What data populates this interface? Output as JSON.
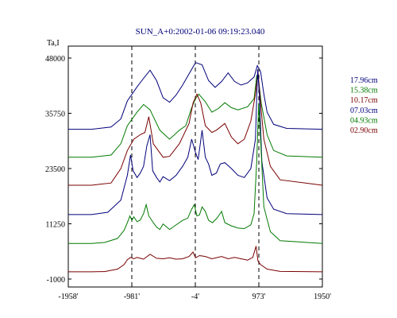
{
  "chart_data": {
    "type": "line",
    "title": "SUN_A+0:2002-01-06 09:19:23.040",
    "ylabel": "Ta,I",
    "xlabel": "",
    "xlim": [
      -1958,
      1950
    ],
    "ylim": [
      -1000,
      48000
    ],
    "x_ticks": [
      -1958,
      -981,
      -4,
      973,
      1950
    ],
    "x_tick_labels": [
      "-1958'",
      "-981'",
      "-4'",
      "973'",
      "1950'"
    ],
    "y_ticks": [
      -1000,
      11250,
      23500,
      35750,
      48000
    ],
    "y_tick_labels": [
      "-1000",
      "11250",
      "23500",
      "35750",
      "48000"
    ],
    "grid": false,
    "vertical_markers": [
      -981,
      -4,
      973
    ],
    "legend_placement": "right",
    "colors": {
      "navy": "#00007a",
      "green": "#007a00",
      "darkred": "#7a0000"
    },
    "series": [
      {
        "name": "17.96cm",
        "color": "#00007a",
        "points": [
          [
            -1958,
            32200
          ],
          [
            -1600,
            32200
          ],
          [
            -1300,
            32700
          ],
          [
            -1150,
            34500
          ],
          [
            -1050,
            38500
          ],
          [
            -900,
            41600
          ],
          [
            -800,
            43500
          ],
          [
            -700,
            45300
          ],
          [
            -600,
            43000
          ],
          [
            -500,
            39200
          ],
          [
            -400,
            38200
          ],
          [
            -300,
            39800
          ],
          [
            -200,
            42000
          ],
          [
            -100,
            44500
          ],
          [
            0,
            47000
          ],
          [
            100,
            46500
          ],
          [
            200,
            43000
          ],
          [
            300,
            41500
          ],
          [
            400,
            42800
          ],
          [
            500,
            44700
          ],
          [
            600,
            42800
          ],
          [
            700,
            42000
          ],
          [
            800,
            42500
          ],
          [
            900,
            43800
          ],
          [
            950,
            46300
          ],
          [
            1000,
            45000
          ],
          [
            1050,
            40000
          ],
          [
            1100,
            36000
          ],
          [
            1200,
            33300
          ],
          [
            1400,
            32400
          ],
          [
            1950,
            32200
          ]
        ]
      },
      {
        "name": "15.38cm",
        "color": "#007a00",
        "points": [
          [
            -1958,
            26000
          ],
          [
            -1600,
            26000
          ],
          [
            -1300,
            26500
          ],
          [
            -1150,
            29000
          ],
          [
            -1050,
            33000
          ],
          [
            -900,
            36000
          ],
          [
            -800,
            37700
          ],
          [
            -700,
            36500
          ],
          [
            -550,
            32000
          ],
          [
            -400,
            30000
          ],
          [
            -250,
            32000
          ],
          [
            -150,
            33000
          ],
          [
            -60,
            37000
          ],
          [
            0,
            39000
          ],
          [
            50,
            40000
          ],
          [
            150,
            38300
          ],
          [
            250,
            36000
          ],
          [
            350,
            36800
          ],
          [
            450,
            38100
          ],
          [
            550,
            37000
          ],
          [
            650,
            36500
          ],
          [
            800,
            37200
          ],
          [
            900,
            39000
          ],
          [
            940,
            44000
          ],
          [
            970,
            43000
          ],
          [
            1010,
            38000
          ],
          [
            1100,
            31000
          ],
          [
            1200,
            27500
          ],
          [
            1400,
            26300
          ],
          [
            1950,
            26000
          ]
        ]
      },
      {
        "name": "10.17cm",
        "color": "#7a0000",
        "points": [
          [
            -1958,
            19800
          ],
          [
            -1600,
            19800
          ],
          [
            -1300,
            20300
          ],
          [
            -1150,
            23500
          ],
          [
            -1050,
            27500
          ],
          [
            -950,
            30000
          ],
          [
            -850,
            31000
          ],
          [
            -780,
            31500
          ],
          [
            -720,
            35000
          ],
          [
            -650,
            29000
          ],
          [
            -500,
            26000
          ],
          [
            -400,
            26200
          ],
          [
            -250,
            29000
          ],
          [
            -100,
            33500
          ],
          [
            -40,
            38000
          ],
          [
            20,
            40000
          ],
          [
            80,
            38000
          ],
          [
            150,
            33000
          ],
          [
            250,
            31500
          ],
          [
            320,
            32000
          ],
          [
            450,
            33500
          ],
          [
            550,
            30500
          ],
          [
            650,
            29000
          ],
          [
            750,
            30000
          ],
          [
            850,
            34000
          ],
          [
            920,
            40000
          ],
          [
            960,
            45000
          ],
          [
            1000,
            38000
          ],
          [
            1050,
            30000
          ],
          [
            1150,
            24000
          ],
          [
            1300,
            21000
          ],
          [
            1950,
            19800
          ]
        ]
      },
      {
        "name": "07.03cm",
        "color": "#00007a",
        "points": [
          [
            -1958,
            13300
          ],
          [
            -1600,
            13300
          ],
          [
            -1350,
            13800
          ],
          [
            -1150,
            16500
          ],
          [
            -1050,
            22000
          ],
          [
            -1000,
            26500
          ],
          [
            -960,
            23000
          ],
          [
            -900,
            21500
          ],
          [
            -850,
            22500
          ],
          [
            -800,
            24000
          ],
          [
            -750,
            28500
          ],
          [
            -700,
            31000
          ],
          [
            -660,
            23000
          ],
          [
            -600,
            21500
          ],
          [
            -550,
            20500
          ],
          [
            -500,
            21700
          ],
          [
            -400,
            20800
          ],
          [
            -300,
            22000
          ],
          [
            -200,
            24000
          ],
          [
            -120,
            26000
          ],
          [
            -60,
            30000
          ],
          [
            0,
            27000
          ],
          [
            40,
            25500
          ],
          [
            100,
            32000
          ],
          [
            150,
            26000
          ],
          [
            200,
            24500
          ],
          [
            250,
            22000
          ],
          [
            320,
            22500
          ],
          [
            380,
            24500
          ],
          [
            450,
            24800
          ],
          [
            550,
            23500
          ],
          [
            650,
            22000
          ],
          [
            750,
            21500
          ],
          [
            850,
            23500
          ],
          [
            920,
            30000
          ],
          [
            955,
            45500
          ],
          [
            980,
            40000
          ],
          [
            1020,
            25000
          ],
          [
            1100,
            17000
          ],
          [
            1200,
            14500
          ],
          [
            1400,
            13500
          ],
          [
            1950,
            13300
          ]
        ]
      },
      {
        "name": "04.93cm",
        "color": "#007a00",
        "points": [
          [
            -1958,
            6900
          ],
          [
            -1600,
            6900
          ],
          [
            -1400,
            7100
          ],
          [
            -1200,
            8000
          ],
          [
            -1100,
            9800
          ],
          [
            -1050,
            11500
          ],
          [
            -1010,
            13000
          ],
          [
            -980,
            12000
          ],
          [
            -950,
            12800
          ],
          [
            -900,
            11700
          ],
          [
            -850,
            12100
          ],
          [
            -800,
            13500
          ],
          [
            -760,
            15500
          ],
          [
            -720,
            13000
          ],
          [
            -650,
            11500
          ],
          [
            -600,
            10500
          ],
          [
            -550,
            10000
          ],
          [
            -500,
            11200
          ],
          [
            -400,
            10000
          ],
          [
            -300,
            11000
          ],
          [
            -200,
            12000
          ],
          [
            -120,
            12500
          ],
          [
            -60,
            14500
          ],
          [
            -20,
            15500
          ],
          [
            20,
            13000
          ],
          [
            60,
            13200
          ],
          [
            100,
            15000
          ],
          [
            150,
            14000
          ],
          [
            200,
            12000
          ],
          [
            260,
            11500
          ],
          [
            330,
            12500
          ],
          [
            400,
            14000
          ],
          [
            450,
            11500
          ],
          [
            550,
            10800
          ],
          [
            650,
            10300
          ],
          [
            750,
            10200
          ],
          [
            850,
            11000
          ],
          [
            900,
            13500
          ],
          [
            940,
            25000
          ],
          [
            970,
            38000
          ],
          [
            1000,
            30000
          ],
          [
            1050,
            15000
          ],
          [
            1150,
            9500
          ],
          [
            1300,
            7500
          ],
          [
            1950,
            6900
          ]
        ]
      },
      {
        "name": "02.90cm",
        "color": "#7a0000",
        "points": [
          [
            -1958,
            600
          ],
          [
            -1600,
            600
          ],
          [
            -1400,
            650
          ],
          [
            -1200,
            1200
          ],
          [
            -1100,
            2200
          ],
          [
            -1050,
            3300
          ],
          [
            -1000,
            3800
          ],
          [
            -950,
            3500
          ],
          [
            -900,
            3800
          ],
          [
            -850,
            3600
          ],
          [
            -800,
            3400
          ],
          [
            -700,
            4500
          ],
          [
            -600,
            3600
          ],
          [
            -500,
            3500
          ],
          [
            -400,
            3700
          ],
          [
            -300,
            3400
          ],
          [
            -200,
            3500
          ],
          [
            -100,
            4000
          ],
          [
            -40,
            5000
          ],
          [
            0,
            3700
          ],
          [
            60,
            4200
          ],
          [
            150,
            4000
          ],
          [
            250,
            3500
          ],
          [
            400,
            4000
          ],
          [
            500,
            3500
          ],
          [
            600,
            3800
          ],
          [
            700,
            3500
          ],
          [
            800,
            3200
          ],
          [
            880,
            3800
          ],
          [
            930,
            6300
          ],
          [
            960,
            3000
          ],
          [
            1000,
            2200
          ],
          [
            1100,
            1200
          ],
          [
            1300,
            700
          ],
          [
            1950,
            600
          ]
        ]
      }
    ]
  }
}
